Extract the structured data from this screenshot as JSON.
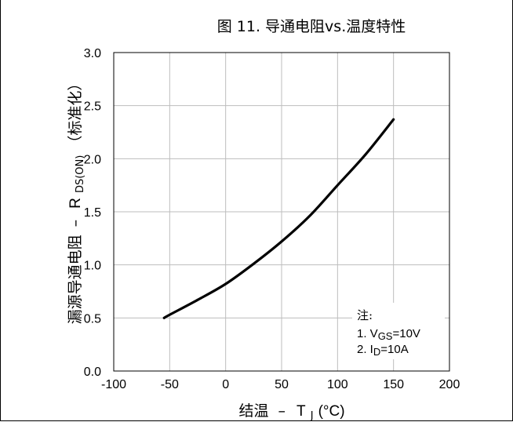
{
  "chart_data": {
    "type": "line",
    "title": "图 11. 导通电阻vs.温度特性",
    "xlabel": {
      "prefix": "结温 ",
      "dash": "–",
      "symbol": "T",
      "sub": "J",
      "unit": " (°C)"
    },
    "ylabel": {
      "prefix": "漏源导通电阻 ",
      "dash": "–",
      "symbol": "R",
      "sub": "DS(ON)",
      "suffix": " （标准化）"
    },
    "xlim": [
      -100,
      200
    ],
    "ylim": [
      0.0,
      3.0
    ],
    "xticks": [
      -100,
      -50,
      0,
      50,
      100,
      150,
      200
    ],
    "xtick_labels": [
      "-100",
      "-50",
      "0",
      "50",
      "100",
      "150",
      "200"
    ],
    "yticks": [
      0.0,
      0.5,
      1.0,
      1.5,
      2.0,
      2.5,
      3.0
    ],
    "ytick_labels": [
      "0.0",
      "0.5",
      "1.0",
      "1.5",
      "2.0",
      "2.5",
      "3.0"
    ],
    "grid": true,
    "series": [
      {
        "color": "#000000",
        "x": [
          -55,
          -50,
          -25,
          0,
          25,
          50,
          75,
          100,
          125,
          150
        ],
        "y": [
          0.5,
          0.53,
          0.67,
          0.82,
          1.01,
          1.22,
          1.46,
          1.75,
          2.04,
          2.37
        ]
      }
    ],
    "notes": {
      "heading": "注:",
      "line1": {
        "prefix": "1. V",
        "sub": "GS",
        "suffix": "=10V"
      },
      "line2": {
        "prefix": "2. I",
        "sub": "D",
        "suffix": "=10A"
      }
    }
  }
}
